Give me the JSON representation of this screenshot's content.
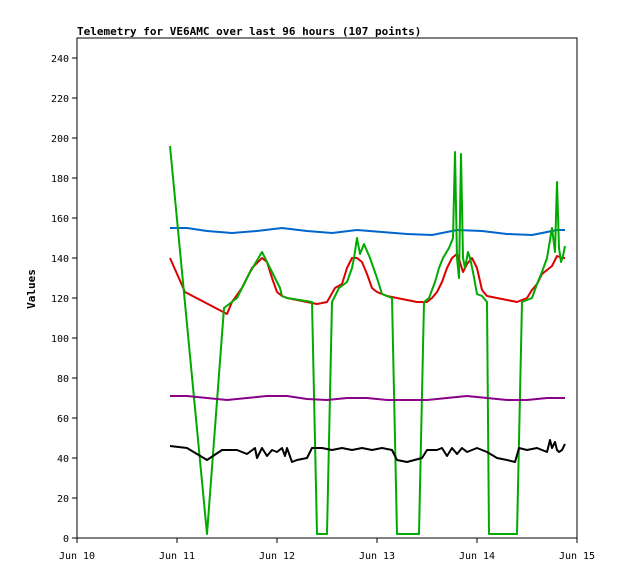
{
  "chart_data": {
    "type": "line",
    "title": "Telemetry for VE6AMC over last 96 hours (107 points)",
    "xlabel": "",
    "ylabel": "Values",
    "xlim": [
      10,
      15
    ],
    "ylim": [
      0,
      250
    ],
    "x_ticks": [
      {
        "value": 10,
        "label": "Jun 10"
      },
      {
        "value": 11,
        "label": "Jun 11"
      },
      {
        "value": 12,
        "label": "Jun 12"
      },
      {
        "value": 13,
        "label": "Jun 13"
      },
      {
        "value": 14,
        "label": "Jun 14"
      },
      {
        "value": 15,
        "label": "Jun 15"
      }
    ],
    "y_ticks": [
      0,
      20,
      40,
      60,
      80,
      100,
      120,
      140,
      160,
      180,
      200,
      220,
      240
    ],
    "grid": false,
    "legend": "none",
    "series": [
      {
        "color": "#0066cc",
        "x": [
          10.93,
          11.1,
          11.3,
          11.55,
          11.8,
          12.05,
          12.3,
          12.55,
          12.8,
          13.05,
          13.3,
          13.55,
          13.8,
          14.05,
          14.3,
          14.55,
          14.8,
          14.88
        ],
        "y": [
          155,
          155,
          153.5,
          152.5,
          153.5,
          155,
          153.5,
          152.5,
          154,
          153,
          152,
          151.5,
          154,
          153.5,
          152,
          151.5,
          154,
          154
        ]
      },
      {
        "color": "#dd0000",
        "x": [
          10.93,
          11.08,
          11.5,
          11.55,
          11.65,
          11.75,
          11.85,
          11.9,
          11.95,
          12.0,
          12.05,
          12.1,
          12.2,
          12.3,
          12.4,
          12.5,
          12.58,
          12.65,
          12.7,
          12.75,
          12.8,
          12.85,
          12.9,
          12.95,
          13.0,
          13.1,
          13.2,
          13.3,
          13.4,
          13.5,
          13.55,
          13.6,
          13.65,
          13.7,
          13.75,
          13.8,
          13.83,
          13.86,
          13.9,
          13.95,
          14.0,
          14.05,
          14.1,
          14.2,
          14.3,
          14.4,
          14.5,
          14.55,
          14.6,
          14.65,
          14.7,
          14.75,
          14.8,
          14.85,
          14.88
        ],
        "y": [
          140,
          123,
          112,
          118,
          125,
          135,
          140,
          138,
          130,
          123,
          121,
          120,
          119,
          118,
          117,
          118,
          125,
          127,
          135,
          140,
          140,
          138,
          132,
          125,
          123,
          121,
          120,
          119,
          118,
          118,
          120,
          123,
          128,
          135,
          140,
          142,
          138,
          133,
          137,
          140,
          135,
          124,
          121,
          120,
          119,
          118,
          120,
          124,
          127,
          132,
          134,
          136,
          141,
          140,
          140
        ]
      },
      {
        "color": "#00aa00",
        "x": [
          10.93,
          11.3,
          11.47,
          11.6,
          11.72,
          11.85,
          11.93,
          12.03,
          12.05,
          12.1,
          12.35,
          12.4,
          12.45,
          12.5,
          12.55,
          12.62,
          12.7,
          12.75,
          12.77,
          12.8,
          12.83,
          12.87,
          12.93,
          13.0,
          13.05,
          13.1,
          13.15,
          13.2,
          13.25,
          13.3,
          13.42,
          13.47,
          13.52,
          13.58,
          13.62,
          13.66,
          13.72,
          13.76,
          13.78,
          13.8,
          13.82,
          13.84,
          13.86,
          13.88,
          13.91,
          13.93,
          13.96,
          14.0,
          14.05,
          14.1,
          14.12,
          14.2,
          14.3,
          14.35,
          14.4,
          14.45,
          14.55,
          14.6,
          14.65,
          14.7,
          14.75,
          14.78,
          14.8,
          14.82,
          14.84,
          14.86,
          14.88
        ],
        "y": [
          196,
          2,
          115,
          120,
          132,
          143,
          135,
          125,
          121,
          120,
          118,
          2,
          2,
          2,
          118,
          125,
          128,
          135,
          140,
          150,
          142,
          147,
          140,
          130,
          122,
          121,
          120,
          2,
          2,
          2,
          2,
          118,
          120,
          128,
          135,
          140,
          145,
          150,
          193,
          140,
          130,
          192,
          140,
          135,
          143,
          140,
          133,
          122,
          121,
          118,
          2,
          2,
          2,
          2,
          2,
          118,
          120,
          127,
          133,
          140,
          155,
          143,
          178,
          145,
          138,
          141,
          146
        ]
      },
      {
        "color": "#880088",
        "x": [
          10.93,
          11.1,
          11.3,
          11.5,
          11.7,
          11.9,
          12.1,
          12.3,
          12.5,
          12.7,
          12.9,
          13.1,
          13.3,
          13.5,
          13.7,
          13.9,
          14.1,
          14.3,
          14.5,
          14.7,
          14.88
        ],
        "y": [
          71,
          71,
          70,
          69,
          70,
          71,
          71,
          69.5,
          69,
          70,
          70,
          69,
          69,
          69,
          70,
          71,
          70,
          69,
          69,
          70,
          70
        ]
      },
      {
        "color": "#000000",
        "x": [
          10.93,
          11.1,
          11.3,
          11.45,
          11.6,
          11.7,
          11.78,
          11.8,
          11.85,
          11.9,
          11.95,
          12.0,
          12.05,
          12.08,
          12.1,
          12.15,
          12.2,
          12.3,
          12.35,
          12.45,
          12.55,
          12.65,
          12.75,
          12.85,
          12.95,
          13.05,
          13.15,
          13.2,
          13.3,
          13.45,
          13.5,
          13.6,
          13.65,
          13.7,
          13.75,
          13.8,
          13.85,
          13.9,
          13.95,
          14.0,
          14.1,
          14.2,
          14.3,
          14.38,
          14.42,
          14.5,
          14.6,
          14.7,
          14.73,
          14.75,
          14.78,
          14.8,
          14.82,
          14.85,
          14.88
        ],
        "y": [
          46,
          45,
          39,
          44,
          44,
          42,
          45,
          40,
          45,
          41,
          44,
          43,
          45,
          41,
          45,
          38,
          39,
          40,
          45,
          45,
          44,
          45,
          44,
          45,
          44,
          45,
          44,
          39,
          38,
          40,
          44,
          44,
          45,
          41,
          45,
          42,
          45,
          43,
          44,
          45,
          43,
          40,
          39,
          38,
          45,
          44,
          45,
          43,
          49,
          45,
          48,
          44,
          43,
          44,
          47
        ]
      }
    ]
  }
}
